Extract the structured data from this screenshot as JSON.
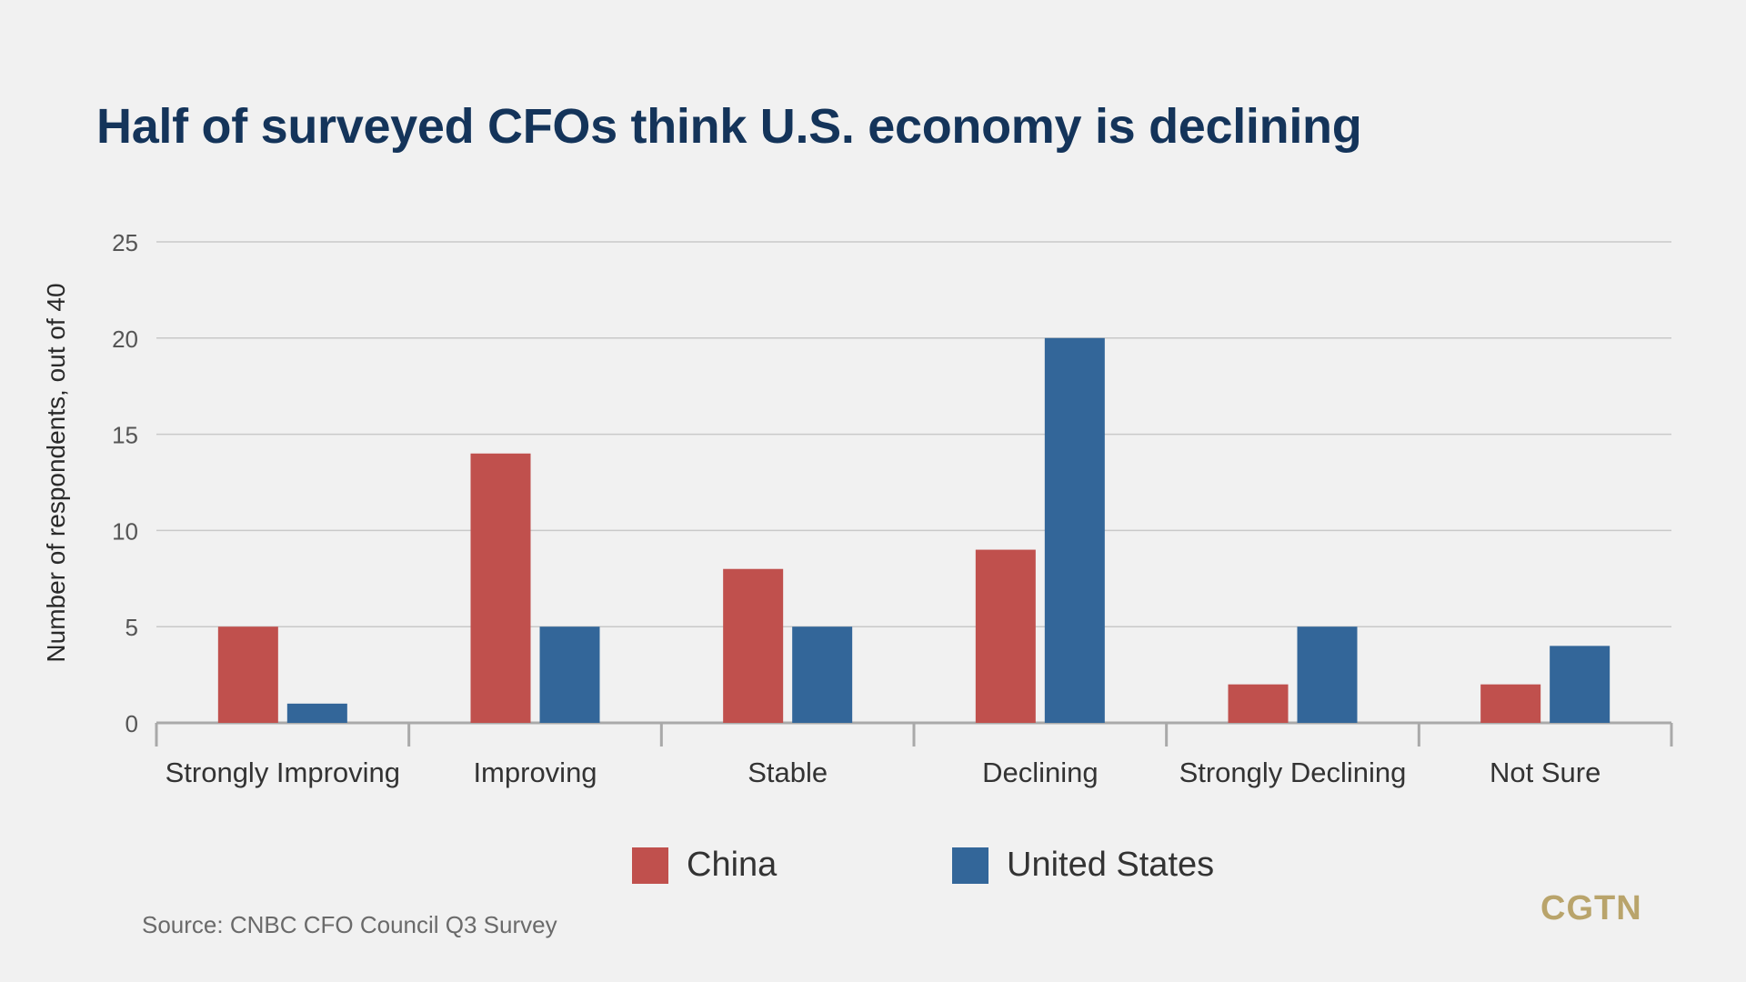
{
  "colors": {
    "background": "#f1f1f1",
    "title": "#14345a",
    "china": "#c0504d",
    "united_states": "#336699",
    "logo": "#b9a46b"
  },
  "logo": "CGTN",
  "source": "Source: CNBC CFO Council Q3 Survey",
  "chart_data": {
    "type": "bar",
    "title": "Half of surveyed CFOs think U.S. economy is declining",
    "ylabel": "Number of respondents, out of 40",
    "xlabel": "",
    "ylim": [
      0,
      25
    ],
    "yticks": [
      0,
      5,
      10,
      15,
      20,
      25
    ],
    "grid": true,
    "legend_position": "bottom",
    "categories": [
      "Strongly Improving",
      "Improving",
      "Stable",
      "Declining",
      "Strongly Declining",
      "Not Sure"
    ],
    "series": [
      {
        "name": "China",
        "color": "#c0504d",
        "values": [
          5,
          14,
          8,
          9,
          2,
          2
        ]
      },
      {
        "name": "United States",
        "color": "#336699",
        "values": [
          1,
          5,
          5,
          20,
          5,
          4
        ]
      }
    ]
  }
}
